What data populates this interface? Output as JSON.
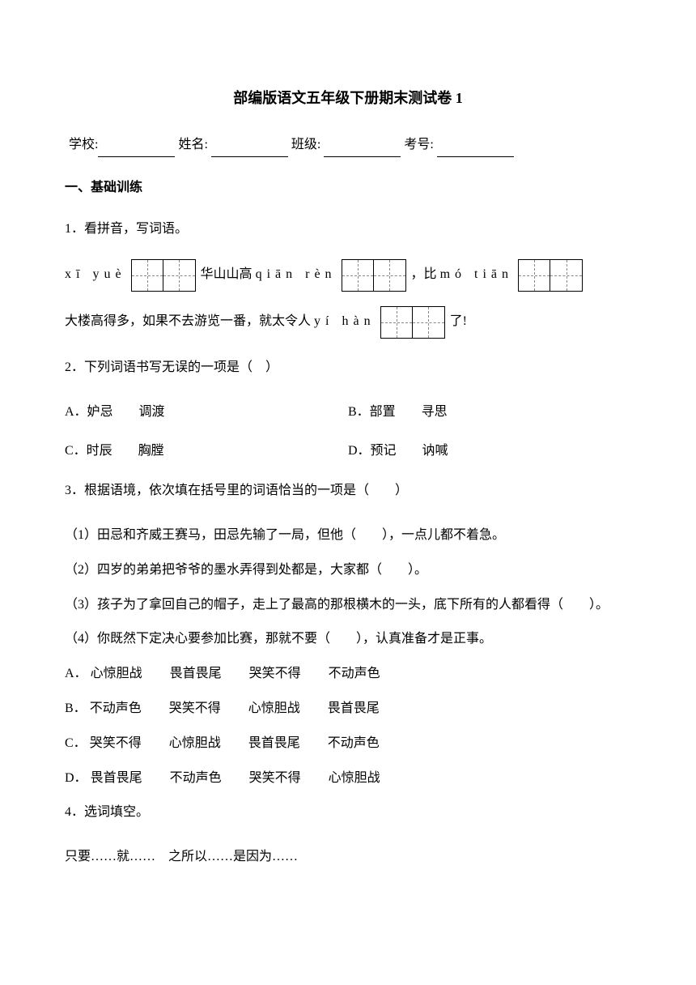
{
  "title": "部编版语文五年级下册期末测试卷 1",
  "info": {
    "school_label": "学校:",
    "name_label": "姓名:",
    "class_label": "班级:",
    "exam_no_label": "考号:"
  },
  "section1": {
    "header": "一、基础训练",
    "q1": {
      "prompt": "1．看拼音，写词语。",
      "pinyin1": "xī yuè",
      "text1": "华山山高",
      "pinyin2": "qiān rèn",
      "text2": "，比",
      "pinyin3": "mó tiān",
      "line2_text1": "大楼高得多，如果不去游览一番，就太令人",
      "pinyin4": "yí hàn",
      "line2_text2": "了!"
    },
    "q2": {
      "prompt": "2．下列词语书写无误的一项是（　）",
      "optA": "A．妒忌　　调渡",
      "optB": "B．部置　　寻思",
      "optC": "C．时辰　　胸膛",
      "optD": "D．预记　　讷喊"
    },
    "q3": {
      "prompt": "3．根据语境，依次填在括号里的词语恰当的一项是（　　）",
      "sub1": "（1）田忌和齐威王赛马，田忌先输了一局，但他（　　），一点儿都不着急。",
      "sub2": "（2）四岁的弟弟把爷爷的墨水弄得到处都是，大家都（　　）。",
      "sub3": "（3）孩子为了拿回自己的帽子，走上了最高的那根横木的一头，底下所有的人都看得（　　）。",
      "sub4": "（4）你既然下定决心要参加比赛，那就不要（　　），认真准备才是正事。",
      "optA_label": "A．",
      "optA_1": "心惊胆战",
      "optA_2": "畏首畏尾",
      "optA_3": "哭笑不得",
      "optA_4": "不动声色",
      "optB_label": "B．",
      "optB_1": "不动声色",
      "optB_2": "哭笑不得",
      "optB_3": "心惊胆战",
      "optB_4": "畏首畏尾",
      "optC_label": "C．",
      "optC_1": "哭笑不得",
      "optC_2": "心惊胆战",
      "optC_3": "畏首畏尾",
      "optC_4": "不动声色",
      "optD_label": "D．",
      "optD_1": "畏首畏尾",
      "optD_2": "不动声色",
      "optD_3": "哭笑不得",
      "optD_4": "心惊胆战"
    },
    "q4": {
      "prompt": "4．选词填空。",
      "words": "只要……就……　之所以……是因为……"
    }
  }
}
